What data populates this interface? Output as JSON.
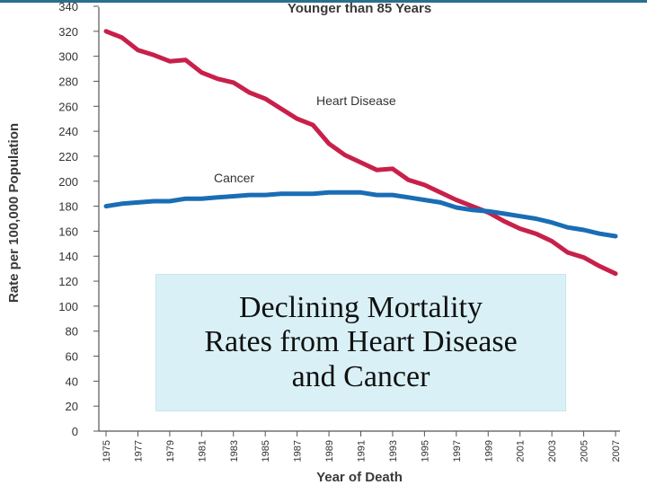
{
  "chart_data": {
    "type": "line",
    "title": "Younger than 85 Years",
    "xlabel": "Year of Death",
    "ylabel": "Rate per 100,000 Population",
    "ylim": [
      0,
      340
    ],
    "yticks": [
      0,
      20,
      40,
      60,
      80,
      100,
      120,
      140,
      160,
      180,
      200,
      220,
      240,
      260,
      280,
      300,
      320,
      340
    ],
    "xlim": [
      1975,
      2007
    ],
    "xtick_labels": [
      "1975",
      "1977",
      "1979",
      "1981",
      "1983",
      "1985",
      "1987",
      "1989",
      "1991",
      "1993",
      "1995",
      "1997",
      "1999",
      "2001",
      "2003",
      "2005",
      "2007"
    ],
    "x": [
      1975,
      1976,
      1977,
      1978,
      1979,
      1980,
      1981,
      1982,
      1983,
      1984,
      1985,
      1986,
      1987,
      1988,
      1989,
      1990,
      1991,
      1992,
      1993,
      1994,
      1995,
      1996,
      1997,
      1998,
      1999,
      2000,
      2001,
      2002,
      2003,
      2004,
      2005,
      2006,
      2007
    ],
    "series": [
      {
        "name": "Heart Disease",
        "color": "#c8204a",
        "values": [
          320,
          315,
          305,
          301,
          296,
          297,
          287,
          282,
          279,
          271,
          266,
          258,
          250,
          245,
          230,
          221,
          215,
          209,
          210,
          201,
          197,
          191,
          185,
          180,
          175,
          168,
          162,
          158,
          152,
          143,
          139,
          132,
          126
        ]
      },
      {
        "name": "Cancer",
        "color": "#1a6db5",
        "values": [
          180,
          182,
          183,
          184,
          184,
          186,
          186,
          187,
          188,
          189,
          189,
          190,
          190,
          190,
          191,
          191,
          191,
          189,
          189,
          187,
          185,
          183,
          179,
          177,
          176,
          174,
          172,
          170,
          167,
          163,
          161,
          158,
          156
        ]
      }
    ],
    "grid": false,
    "legend": "inline"
  },
  "overlay": {
    "lines": [
      "Declining Mortality",
      "Rates from Heart Disease",
      "and Cancer"
    ]
  },
  "colors": {
    "top_bar": "#2a6f8f",
    "overlay_background": "#d9f1f6"
  }
}
